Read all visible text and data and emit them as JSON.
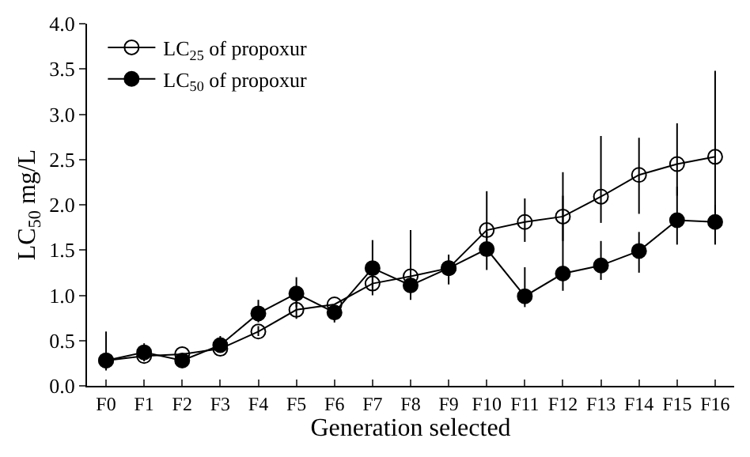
{
  "chart_data": {
    "type": "line",
    "xlabel": "Generation selected",
    "ylabel": "LC$_{50}$ mg/L",
    "categories": [
      "F0",
      "F1",
      "F2",
      "F3",
      "F4",
      "F5",
      "F6",
      "F7",
      "F8",
      "F9",
      "F10",
      "F11",
      "F12",
      "F13",
      "F14",
      "F15",
      "F16"
    ],
    "series": [
      {
        "name": "LC$_{25}$ of propoxur",
        "color": "#000000",
        "marker": "circle-open",
        "values": [
          0.28,
          0.33,
          0.35,
          0.41,
          0.6,
          0.84,
          0.9,
          1.13,
          1.21,
          1.3,
          1.72,
          1.81,
          1.87,
          2.09,
          2.33,
          2.45,
          2.53
        ],
        "errors": [
          null,
          null,
          null,
          null,
          [
            0.55,
            0.66
          ],
          [
            0.74,
            0.95
          ],
          null,
          [
            1.0,
            1.28
          ],
          [
            1.0,
            1.72
          ],
          null,
          [
            1.55,
            2.15
          ],
          [
            1.59,
            2.07
          ],
          [
            1.6,
            2.1
          ],
          [
            1.8,
            2.76
          ],
          [
            1.9,
            2.74
          ],
          [
            2.1,
            2.9
          ],
          [
            1.9,
            3.48
          ]
        ]
      },
      {
        "name": "LC$_{50}$ of propoxur",
        "color": "#000000",
        "marker": "circle",
        "values": [
          0.28,
          0.37,
          0.28,
          0.45,
          0.8,
          1.02,
          0.81,
          1.3,
          1.11,
          1.3,
          1.51,
          0.99,
          1.24,
          1.33,
          1.49,
          1.83,
          1.81
        ],
        "errors": [
          [
            0.17,
            0.6
          ],
          [
            0.27,
            0.47
          ],
          null,
          [
            0.38,
            0.55
          ],
          [
            0.7,
            0.95
          ],
          [
            0.87,
            1.2
          ],
          [
            0.7,
            0.9
          ],
          [
            1.08,
            1.61
          ],
          [
            0.95,
            1.2
          ],
          [
            1.12,
            1.45
          ],
          [
            1.28,
            1.7
          ],
          [
            0.87,
            1.31
          ],
          [
            1.05,
            2.36
          ],
          [
            1.17,
            1.6
          ],
          [
            1.25,
            1.7
          ],
          [
            1.56,
            2.2
          ],
          [
            1.56,
            2.0
          ]
        ]
      }
    ],
    "ylim": [
      0,
      4
    ],
    "yticks": [
      {
        "value": 0,
        "label": "0.0"
      },
      0.5,
      {
        "value": 1,
        "label": "1.0"
      },
      1.5,
      {
        "value": 2,
        "label": "2.0"
      },
      2.5,
      {
        "value": 3,
        "label": "3.0"
      },
      3.5,
      {
        "value": 4,
        "label": "4.0"
      }
    ],
    "legend": "top left",
    "line_style": "solid"
  }
}
